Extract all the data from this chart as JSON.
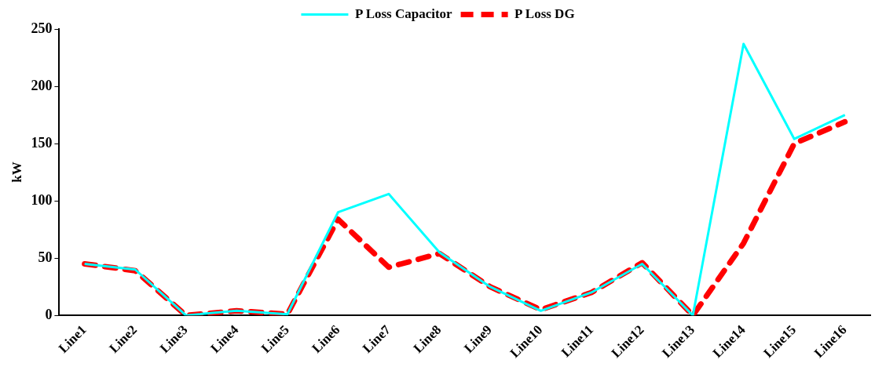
{
  "chart_data": {
    "type": "line",
    "ylabel": "kW",
    "categories": [
      "Line1",
      "Line2",
      "Line3",
      "Line4",
      "Line5",
      "Line6",
      "Line7",
      "Line8",
      "Line9",
      "Line10",
      "Line11",
      "Line12",
      "Line13",
      "Line14",
      "Line15",
      "Line16"
    ],
    "series": [
      {
        "name": "P Loss Capacitor",
        "color": "#00ffff",
        "line_style": "solid",
        "values": [
          45,
          40,
          0,
          4,
          1,
          90,
          106,
          55,
          25,
          4,
          20,
          45,
          0,
          237,
          154,
          175
        ]
      },
      {
        "name": "P Loss DG",
        "color": "#ff0000",
        "line_style": "dashed",
        "values": [
          45,
          39,
          0,
          4,
          1,
          84,
          42,
          54,
          25,
          5,
          20,
          46,
          0,
          63,
          150,
          169
        ]
      }
    ],
    "ylim": [
      0,
      250
    ],
    "yticks": [
      0,
      50,
      100,
      150,
      200,
      250
    ],
    "grid": false,
    "legend": "top",
    "marker": "none"
  }
}
